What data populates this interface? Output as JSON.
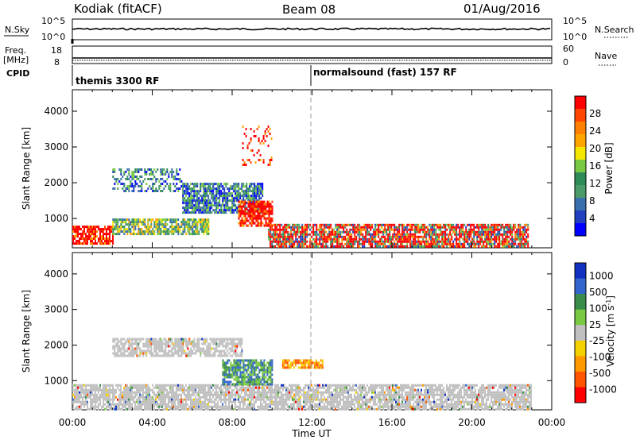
{
  "header": {
    "site": "Kodiak (fitACF)",
    "beam": "Beam 08",
    "date": "01/Aug/2016"
  },
  "summary_panels": {
    "nsky_label": "N.Sky",
    "nsky_ticks": [
      "10^5",
      "10^0"
    ],
    "nsearch_label": "N.Search",
    "nsearch_ticks": [
      "10^5",
      "10^0"
    ],
    "freq_label_line1": "Freq.",
    "freq_label_line2": "[MHz]",
    "freq_ticks": [
      "18",
      "8"
    ],
    "nave_label": "Nave",
    "nave_ticks": [
      "60",
      "0"
    ],
    "cpid_label": "CPID",
    "cpid_segments": [
      {
        "name": "themis 3300 RF"
      },
      {
        "name": "normalsound (fast) 157 RF"
      }
    ]
  },
  "chart_data": [
    {
      "type": "heatmap",
      "panel": "power",
      "ylabel": "Slant Range [km]",
      "xlabel": "",
      "xticks": [
        "00:00",
        "04:00",
        "08:00",
        "12:00",
        "16:00",
        "20:00",
        "00:00"
      ],
      "yticks": [
        1000,
        2000,
        3000,
        4000
      ],
      "ylim": [
        180,
        4600
      ],
      "xlim_hours": [
        0,
        24
      ],
      "colorbar": {
        "label": "Power [dB]",
        "ticks": [
          28,
          24,
          20,
          16,
          12,
          8,
          4
        ],
        "range": [
          0,
          32
        ],
        "colors": [
          "#0000ff",
          "#2040c0",
          "#3a6fae",
          "#4a9a6a",
          "#2e8b57",
          "#7ac943",
          "#f5e600",
          "#ffa500",
          "#ff7f00",
          "#ff4500",
          "#ff0000"
        ]
      },
      "echo_regions": [
        {
          "t": [
            0.0,
            2.0
          ],
          "r": [
            300,
            800
          ],
          "level": "high"
        },
        {
          "t": [
            2.0,
            6.8
          ],
          "r": [
            600,
            1000
          ],
          "level": "medium"
        },
        {
          "t": [
            2.0,
            5.5
          ],
          "r": [
            1800,
            2400
          ],
          "level": "low"
        },
        {
          "t": [
            5.5,
            9.5
          ],
          "r": [
            1200,
            2000
          ],
          "level": "low-medium"
        },
        {
          "t": [
            8.3,
            10.0
          ],
          "r": [
            800,
            1500
          ],
          "level": "high"
        },
        {
          "t": [
            9.8,
            22.8
          ],
          "r": [
            200,
            850
          ],
          "level": "high-band"
        },
        {
          "t": [
            8.5,
            10.0
          ],
          "r": [
            2500,
            3600
          ],
          "level": "sparse-high"
        }
      ]
    },
    {
      "type": "heatmap",
      "panel": "velocity",
      "ylabel": "Slant Range [km]",
      "xlabel": "Time UT",
      "xticks": [
        "00:00",
        "04:00",
        "08:00",
        "12:00",
        "16:00",
        "20:00",
        "00:00"
      ],
      "yticks": [
        1000,
        2000,
        3000,
        4000
      ],
      "ylim": [
        180,
        4600
      ],
      "xlim_hours": [
        0,
        24
      ],
      "colorbar": {
        "label": "Velocity [m s-1]",
        "ticks": [
          1000,
          500,
          100,
          25,
          -25,
          -100,
          -500,
          -1000
        ],
        "colors": [
          "#1030c0",
          "#3366cc",
          "#3a8c4a",
          "#7ac943",
          "#c0c0c0",
          "#f5d000",
          "#ff9900",
          "#ff5500",
          "#ff0000"
        ]
      },
      "echo_regions": [
        {
          "t": [
            0.0,
            23.0
          ],
          "r": [
            200,
            900
          ],
          "level": "ground-scatter"
        },
        {
          "t": [
            2.0,
            8.5
          ],
          "r": [
            1700,
            2200
          ],
          "level": "ground-scatter"
        },
        {
          "t": [
            7.5,
            10.0
          ],
          "r": [
            900,
            1600
          ],
          "level": "positive"
        },
        {
          "t": [
            10.5,
            12.5
          ],
          "r": [
            1350,
            1600
          ],
          "level": "negative"
        }
      ]
    }
  ]
}
